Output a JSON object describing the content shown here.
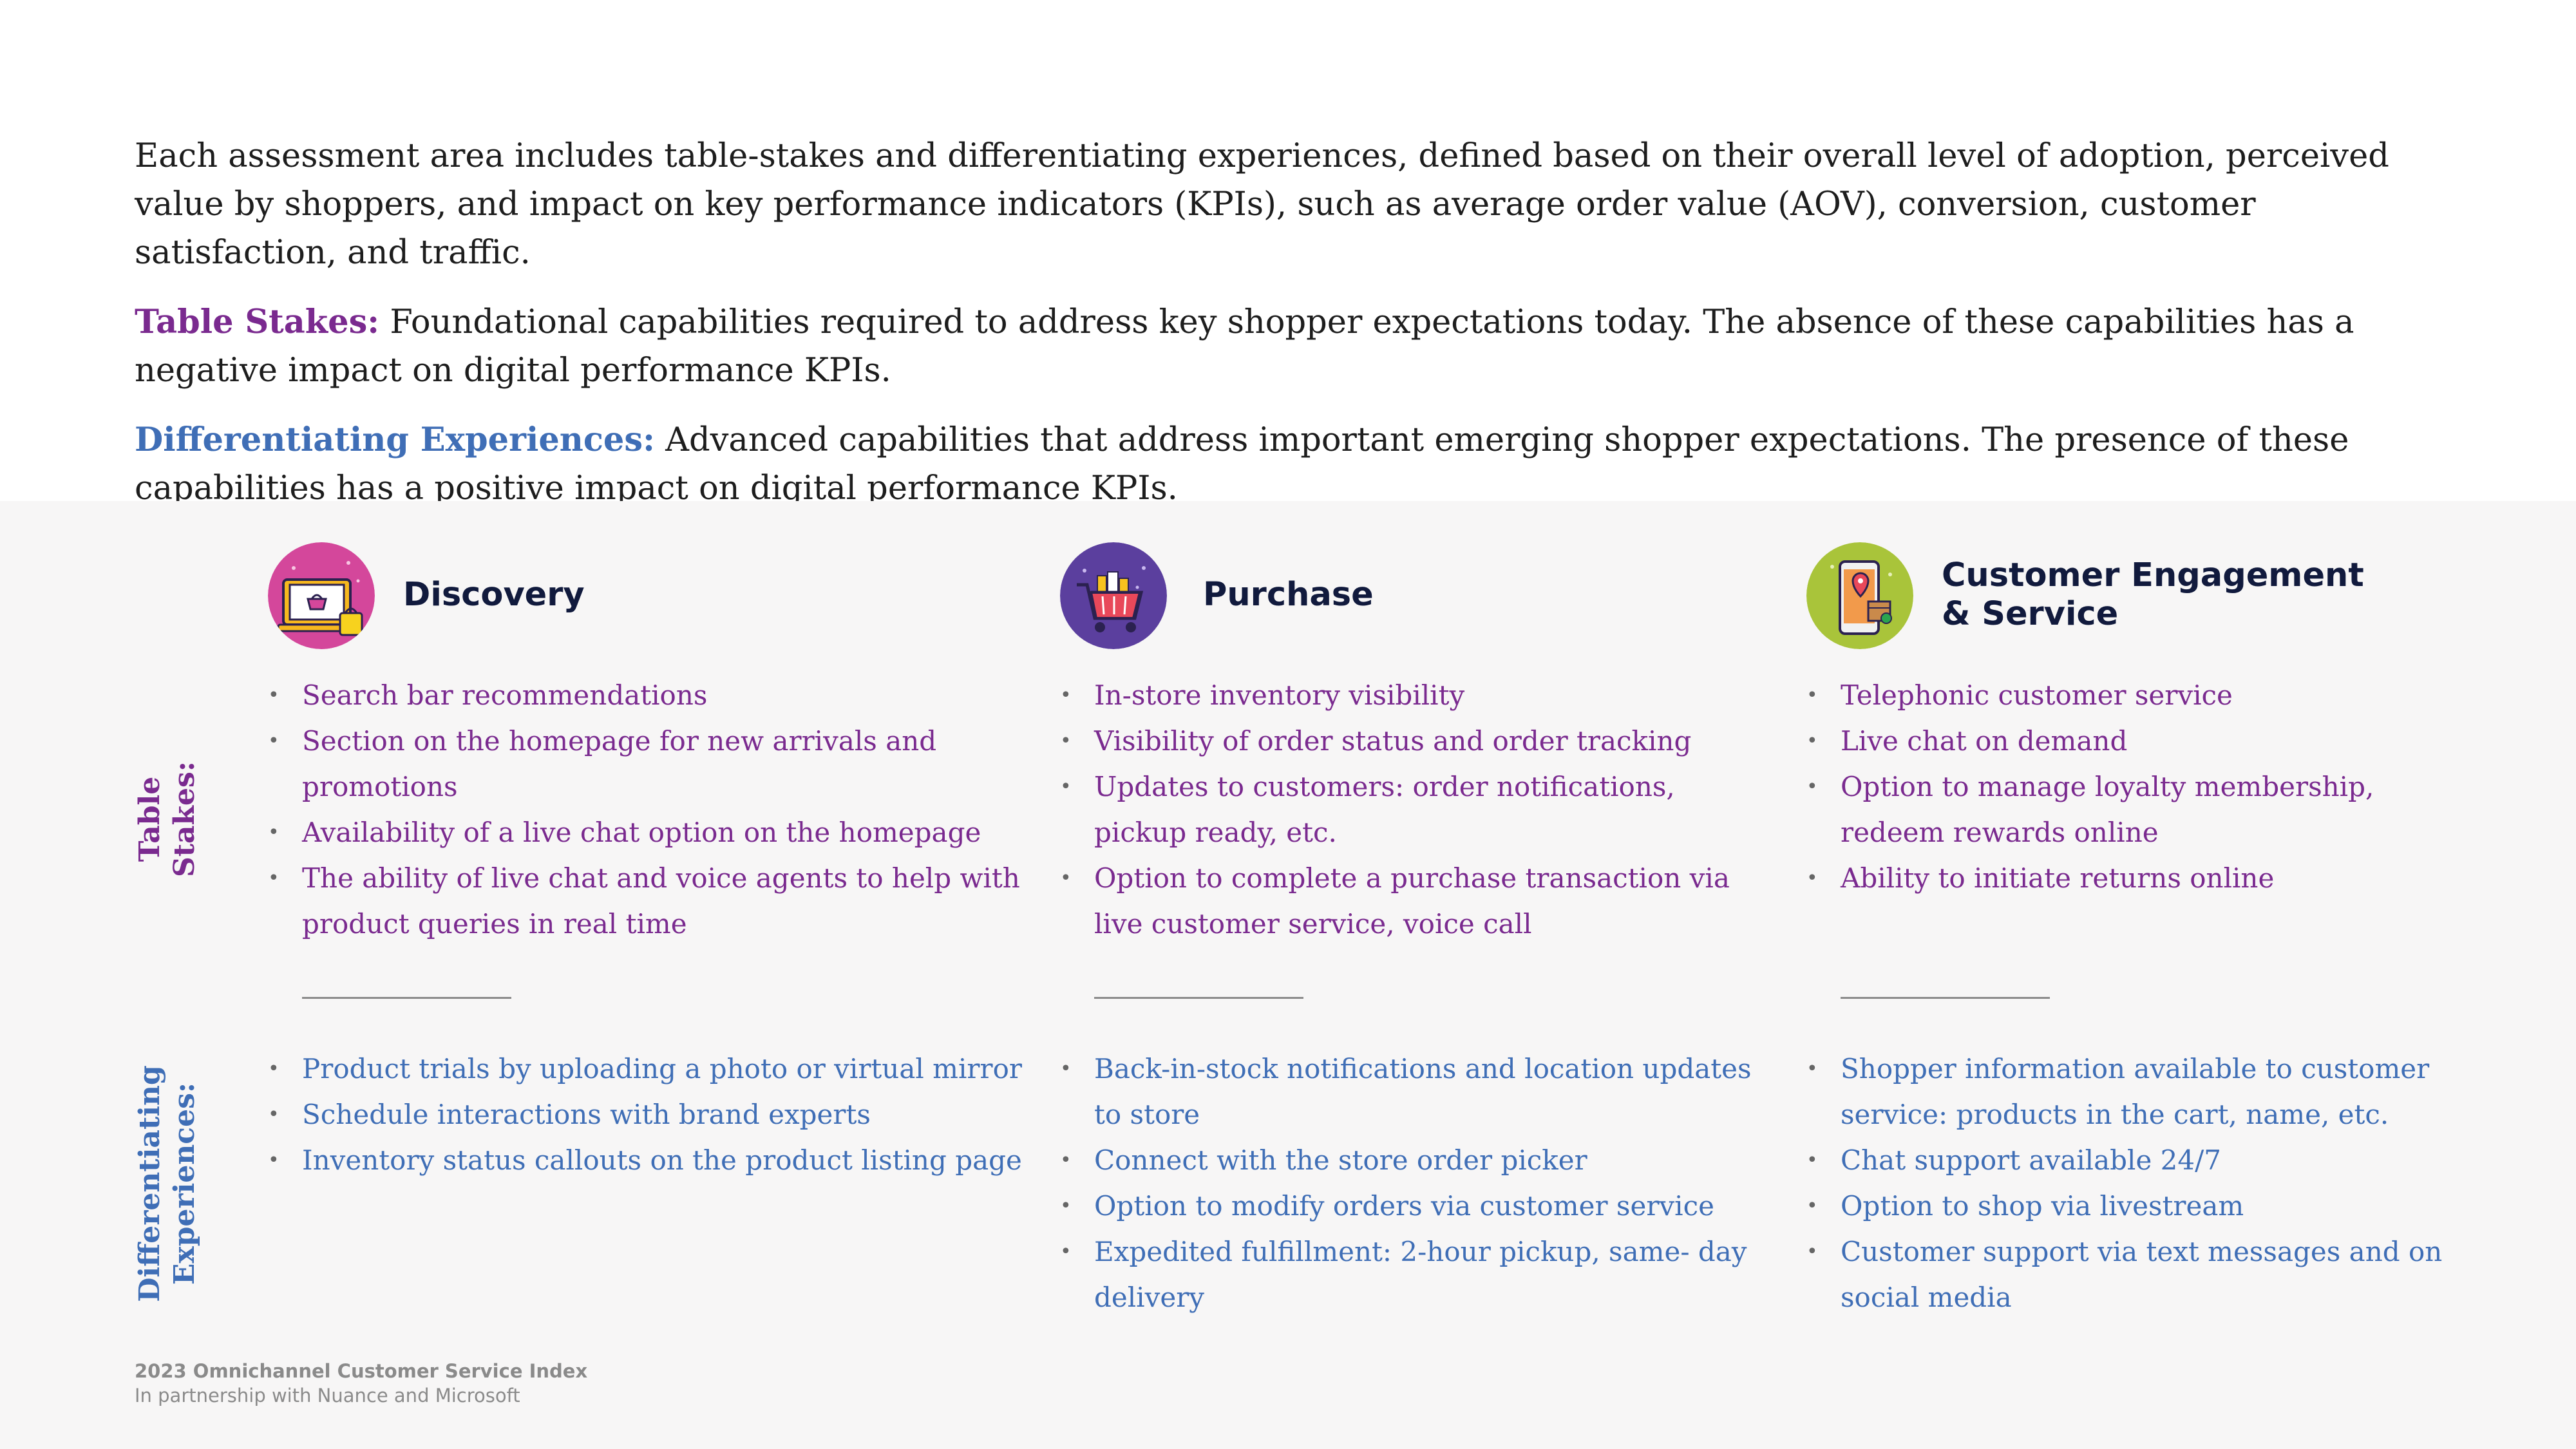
{
  "intro": {
    "paragraph": "Each assessment area includes table-stakes and differentiating experiences, defined based on their overall level of adoption, perceived value by shoppers, and impact on key performance indicators (KPIs), such as average order value (AOV), conversion, customer satisfaction, and traffic.",
    "table_stakes_label": "Table Stakes:",
    "table_stakes_text": " Foundational capabilities required to address key shopper expectations today. The absence of these capabilities has a negative impact on digital performance KPIs.",
    "diff_label": "Differentiating Experiences:",
    "diff_text": " Advanced capabilities that address important emerging shopper expectations. The presence of these capabilities has a positive impact on digital performance KPIs."
  },
  "side_labels": {
    "table_stakes_line1": "Table",
    "table_stakes_line2": "Stakes:",
    "diff_line1": "Differentiating",
    "diff_line2": "Experiences:"
  },
  "columns": [
    {
      "title_line1": "Discovery",
      "title_line2": "",
      "icon": "laptop-shopping-basket-icon",
      "table_stakes": [
        "Search bar recommendations",
        "Section on the homepage for new arrivals and promotions",
        "Availability of a live chat option on the homepage",
        "The ability of live chat and voice agents to help with product queries in real time"
      ],
      "differentiating": [
        "Product trials by uploading a photo or virtual mirror",
        "Schedule interactions with brand experts",
        "Inventory status callouts on the product listing page"
      ]
    },
    {
      "title_line1": "Purchase",
      "title_line2": "",
      "icon": "shopping-cart-icon",
      "table_stakes": [
        "In-store inventory visibility",
        "Visibility of order status and order tracking",
        "Updates to customers: order notifications, pickup ready, etc.",
        "Option to complete a purchase transaction via live customer service, voice call"
      ],
      "differentiating": [
        "Back-in-stock notifications and location updates to store",
        "Connect with the store order picker",
        "Option to modify orders via customer service",
        "Expedited fulfillment: 2-hour pickup, same- day delivery"
      ]
    },
    {
      "title_line1": "Customer Engagement",
      "title_line2": "& Service",
      "icon": "mobile-location-icon",
      "table_stakes": [
        "Telephonic customer service",
        "Live chat on demand",
        "Option to manage loyalty membership, redeem rewards online",
        "Ability to initiate returns online"
      ],
      "differentiating": [
        "Shopper information available to customer service: products in the cart, name, etc.",
        "Chat support available 24/7",
        "Option to shop via livestream",
        "Customer support via text messages and on social media"
      ]
    }
  ],
  "footer": {
    "title": "2023 Omnichannel Customer Service Index",
    "subtitle": "In partnership with Nuance and Microsoft"
  },
  "colors": {
    "table_stakes": "#7a2a8f",
    "differentiating": "#3f6eb6",
    "panel_bg": "#f7f6f6"
  }
}
